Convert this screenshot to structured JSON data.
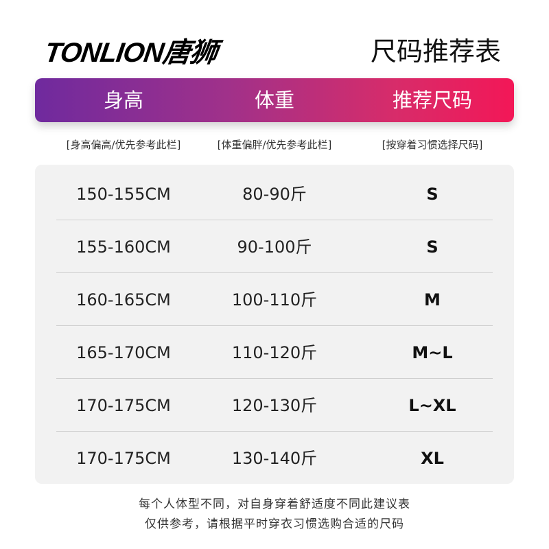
{
  "brand": {
    "logo": "TONLION唐狮"
  },
  "title": "尺码推荐表",
  "header": {
    "columns": [
      "身高",
      "体重",
      "推荐尺码"
    ],
    "gradient": [
      "#6f2a9e",
      "#f31757"
    ]
  },
  "subheaders": [
    "[身高偏高/优先参考此栏]",
    "[体重偏胖/优先参考此栏]",
    "[按穿着习惯选择尺码]"
  ],
  "rows": [
    {
      "height": "150-155CM",
      "weight": "80-90斤",
      "size": "S"
    },
    {
      "height": "155-160CM",
      "weight": "90-100斤",
      "size": "S"
    },
    {
      "height": "160-165CM",
      "weight": "100-110斤",
      "size": "M"
    },
    {
      "height": "165-170CM",
      "weight": "110-120斤",
      "size": "M~L"
    },
    {
      "height": "170-175CM",
      "weight": "120-130斤",
      "size": "L~XL"
    },
    {
      "height": "170-175CM",
      "weight": "130-140斤",
      "size": "XL"
    }
  ],
  "footer": [
    "每个人体型不同，对自身穿着舒适度不同此建议表",
    "仅供参考，请根据平时穿衣习惯选购合适的尺码"
  ]
}
